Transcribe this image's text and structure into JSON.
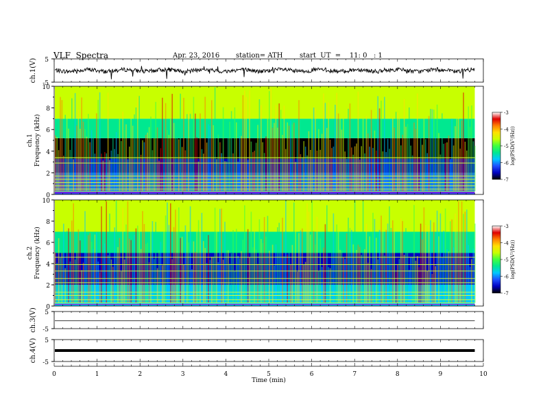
{
  "header": {
    "title": "VLF  Spectra",
    "date": "Apr. 23, 2016",
    "station": "station= ATH",
    "start": "start  UT  =    11: 0   : 1"
  },
  "colors": {
    "scale": [
      "#000000",
      "#0000c0",
      "#1e50ff",
      "#00c8ff",
      "#00e890",
      "#40ff40",
      "#c8ff00",
      "#ffe000",
      "#ff8000",
      "#e00000",
      "#ffffff"
    ]
  },
  "chart_data": [
    {
      "type": "line",
      "channel": "ch.1(V)",
      "ylabel": "ch.1(V)",
      "ylim": [
        -5,
        5
      ],
      "yticks": [
        "5",
        "-5"
      ],
      "x_range": [
        0,
        9.8
      ],
      "description_level": "waveform near 0 V, fluctuating about ±2 V"
    },
    {
      "type": "heatmap",
      "channel": "ch.1",
      "ylabel_channel": "ch.1",
      "ylabel": "Frequency  (kHz)",
      "ylim": [
        0,
        10
      ],
      "yticks": [
        "0",
        "2",
        "4",
        "6",
        "8",
        "10"
      ],
      "x_range": [
        0,
        9.8
      ],
      "colorbar": {
        "label": "log(PSD(V²/Hz))",
        "range": [
          -7,
          -3
        ],
        "ticks": [
          "-3",
          "-4",
          "-5",
          "-6",
          "-7"
        ]
      },
      "bands_khz": [
        {
          "from": 0,
          "to": 2.0,
          "level": -6.0
        },
        {
          "from": 2.0,
          "to": 3.3,
          "level": -6.3
        },
        {
          "from": 3.3,
          "to": 5.2,
          "level": -6.8
        },
        {
          "from": 5.2,
          "to": 7.0,
          "level": -5.2
        },
        {
          "from": 7.0,
          "to": 10,
          "level": -4.5
        }
      ]
    },
    {
      "type": "heatmap",
      "channel": "ch.2",
      "ylabel_channel": "ch.2",
      "ylabel": "Frequency  (kHz)",
      "ylim": [
        0,
        10
      ],
      "yticks": [
        "0",
        "2",
        "4",
        "6",
        "8",
        "10"
      ],
      "x_range": [
        0,
        9.8
      ],
      "colorbar": {
        "label": "log(PSD(V²/Hz))",
        "range": [
          -7,
          -3
        ],
        "ticks": [
          "-3",
          "-4",
          "-5",
          "-6",
          "-7"
        ]
      },
      "bands_khz": [
        {
          "from": 0,
          "to": 2.0,
          "level": -5.6
        },
        {
          "from": 2.0,
          "to": 3.0,
          "level": -6.2
        },
        {
          "from": 3.0,
          "to": 5.0,
          "level": -6.6
        },
        {
          "from": 5.0,
          "to": 7.0,
          "level": -5.1
        },
        {
          "from": 7.0,
          "to": 10,
          "level": -4.6
        }
      ]
    },
    {
      "type": "line",
      "channel": "ch.3(V)",
      "ylabel": "ch.3(V)",
      "ylim": [
        -5,
        5
      ],
      "yticks": [
        "5",
        "-5"
      ],
      "x_range": [
        0,
        9.8
      ],
      "description_level": "flat line near 0 V"
    },
    {
      "type": "line",
      "channel": "ch.4(V)",
      "ylabel": "ch.4(V)",
      "ylim": [
        -5,
        5
      ],
      "yticks": [
        "5",
        "-5"
      ],
      "x_range": [
        0,
        9.8
      ],
      "description_level": "thick flat line near 0 V"
    }
  ],
  "xaxis": {
    "label": "Time  (min)",
    "xlim": [
      0,
      10
    ],
    "ticks": [
      "0",
      "1",
      "2",
      "3",
      "4",
      "5",
      "6",
      "7",
      "8",
      "9",
      "10"
    ]
  }
}
